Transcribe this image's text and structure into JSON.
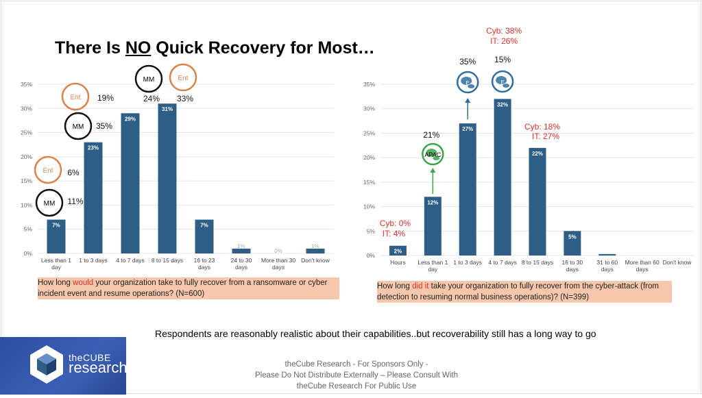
{
  "slide": {
    "title_pre": "There Is ",
    "title_no": "NO",
    "title_post": " Quick Recovery for Most…",
    "tagline": "Respondents are reasonably realistic about their capabilities..but recoverability still has a long way to go",
    "footer_line1": "theCube Research - For Sponsors Only -",
    "footer_line2": "Please Do Not Distribute Externally – Please Consult With",
    "footer_line3": "theCube Research For Public Use",
    "logo_word1": "theCUBE",
    "logo_word2": "research",
    "logo_icon": "cube-logo-icon",
    "q1_pre": "How long ",
    "q1_hl": "would",
    "q1_post": " your organization take to fully recover from a ransomware or cyber incident event and resume operations? (N=600)",
    "q2_pre": "How long ",
    "q2_hl": "did it",
    "q2_post": " take your organization to fully recover from the cyber-attack (from detection to resuming normal business operations)? (N=399)"
  },
  "colors": {
    "bar": "#2e5e86",
    "highlight_text": "#e0302a",
    "ent_circle": "#d9834a",
    "mm_circle": "#111111",
    "apac_globe": "#3aa548",
    "euro_globe": "#2e6e9e",
    "question_bg": "#f6c7ad"
  },
  "chart_data": [
    {
      "type": "bar",
      "categories": [
        "Less than 1 day",
        "1 to 3 days",
        "4 to 7 days",
        "8 to 15 days",
        "16 to 23 days",
        "24 to 30 days",
        "More than 30 days",
        "Don't know"
      ],
      "values": [
        7,
        23,
        29,
        31,
        7,
        1,
        0,
        1
      ],
      "value_labels": [
        "7%",
        "23%",
        "29%",
        "31%",
        "7%",
        "1%",
        "0%",
        "1%"
      ],
      "ylim": [
        0,
        35
      ],
      "yticks": [
        "0%",
        "5%",
        "10%",
        "15%",
        "20%",
        "25%",
        "30%",
        "35%"
      ],
      "grid": true,
      "annotations": [
        {
          "badge": "MM",
          "text": "11%",
          "category": "Less than 1 day"
        },
        {
          "badge": "Ent",
          "text": "6%",
          "category": "Less than 1 day"
        },
        {
          "badge": "MM",
          "text": "35%",
          "category": "1 to 3 days"
        },
        {
          "badge": "Ent",
          "text": "19%",
          "category": "1 to 3 days"
        },
        {
          "badge": "MM",
          "text": "24%",
          "category": "8 to 15 days"
        },
        {
          "badge": "Ent",
          "text": "33%",
          "category": "8 to 15 days"
        }
      ]
    },
    {
      "type": "bar",
      "categories": [
        "Hours",
        "Less than 1 day",
        "1 to 3 days",
        "4 to 7 days",
        "8 to 15 days",
        "16 to 30 days",
        "31 to 60 days",
        "More than 60 days",
        "Don't know"
      ],
      "values": [
        2,
        12,
        27,
        32,
        22,
        5,
        0.3,
        0,
        0
      ],
      "value_labels": [
        "2%",
        "12%",
        "27%",
        "32%",
        "22%",
        "5%",
        "",
        "",
        ""
      ],
      "ylim": [
        0,
        35
      ],
      "yticks": [
        "0%",
        "5%",
        "10%",
        "15%",
        "20%",
        "25%",
        "30%",
        "35%"
      ],
      "grid": true,
      "annotations": [
        {
          "text": "Cyb: 0%",
          "category": "Hours"
        },
        {
          "text": "IT: 4%",
          "category": "Hours"
        },
        {
          "globe": "APAC",
          "text": "21%",
          "category": "Less than 1 day"
        },
        {
          "globe": "E",
          "text": "35%",
          "category": "1 to 3 days"
        },
        {
          "globe": "E",
          "text": "15%",
          "category": "4 to 7 days"
        },
        {
          "text": "Cyb: 38%",
          "category": "4 to 7 days"
        },
        {
          "text": "IT: 26%",
          "category": "4 to 7 days"
        },
        {
          "text": "Cyb: 18%",
          "category": "8 to 15 days"
        },
        {
          "text": "IT: 27%",
          "category": "8 to 15 days"
        }
      ]
    }
  ]
}
